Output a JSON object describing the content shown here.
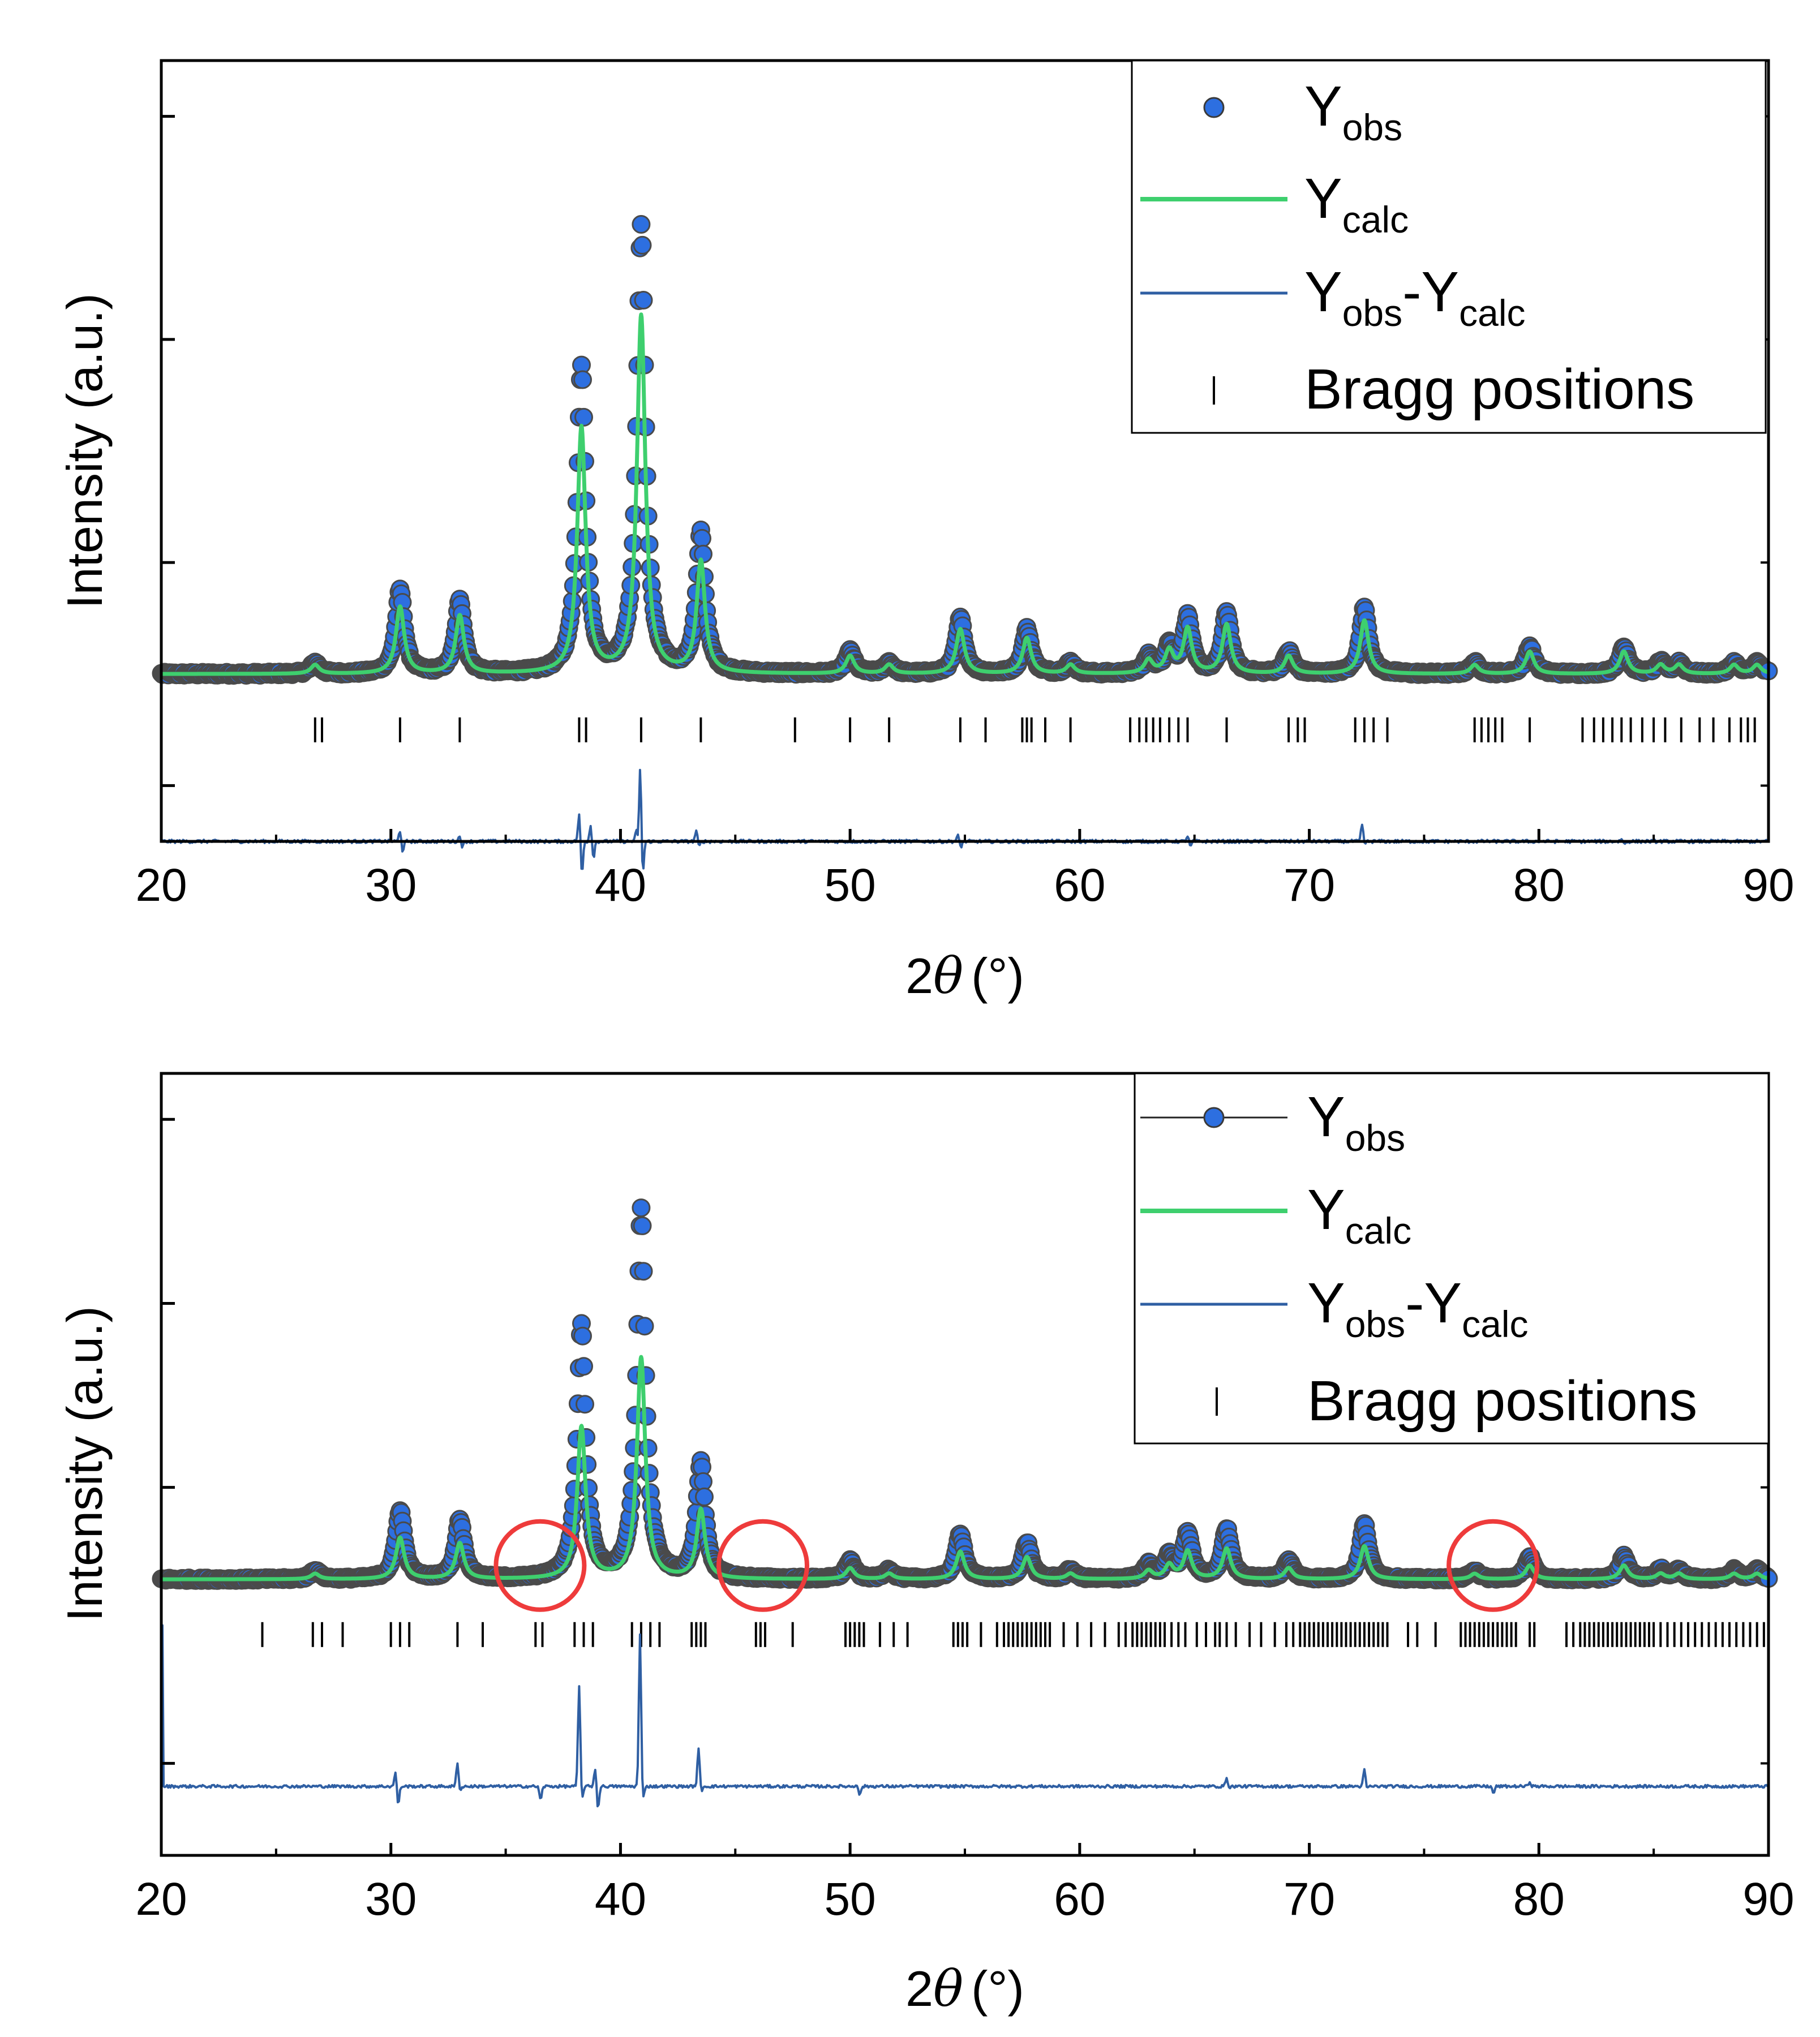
{
  "chart_data": [
    {
      "type": "line",
      "id": "top",
      "xlabel": "2θ (°)",
      "xlabel_prefix": "2",
      "xlabel_theta": "θ",
      "xlabel_unit": "(°)",
      "ylabel": "Intensity (a.u.)",
      "xlim": [
        20,
        90
      ],
      "ylim": [
        -0.3,
        1.1
      ],
      "x_ticks": [
        20,
        30,
        40,
        50,
        60,
        70,
        80,
        90
      ],
      "x_tick_labels": [
        "20",
        "30",
        "40",
        "50",
        "60",
        "70",
        "80",
        "90"
      ],
      "y_ticks": [
        -0.2,
        0.2,
        0.6,
        1.0
      ],
      "legend": {
        "position": "top-right",
        "entries": [
          {
            "series": "obs",
            "main": "Y",
            "sub": "obs"
          },
          {
            "series": "calc",
            "main": "Y",
            "sub": "calc"
          },
          {
            "series": "diff",
            "main": "Y",
            "sub": "obs",
            "main2": "-Y",
            "sub2": "calc"
          },
          {
            "series": "bragg",
            "text": "Bragg positions"
          }
        ]
      },
      "baseline": 0.0,
      "peaks": [
        {
          "x": 26.7,
          "h": 0.02
        },
        {
          "x": 30.4,
          "h": 0.15
        },
        {
          "x": 33.0,
          "h": 0.13
        },
        {
          "x": 38.3,
          "h": 0.55
        },
        {
          "x": 40.9,
          "h": 0.8
        },
        {
          "x": 43.5,
          "h": 0.25
        },
        {
          "x": 50.0,
          "h": 0.04
        },
        {
          "x": 51.7,
          "h": 0.02
        },
        {
          "x": 54.8,
          "h": 0.1
        },
        {
          "x": 57.7,
          "h": 0.08
        },
        {
          "x": 59.6,
          "h": 0.02
        },
        {
          "x": 63.0,
          "h": 0.03
        },
        {
          "x": 63.9,
          "h": 0.05
        },
        {
          "x": 64.7,
          "h": 0.1
        },
        {
          "x": 66.4,
          "h": 0.11
        },
        {
          "x": 69.1,
          "h": 0.04
        },
        {
          "x": 72.4,
          "h": 0.12
        },
        {
          "x": 77.2,
          "h": 0.02
        },
        {
          "x": 79.6,
          "h": 0.05
        },
        {
          "x": 83.7,
          "h": 0.05
        },
        {
          "x": 85.3,
          "h": 0.02
        },
        {
          "x": 86.1,
          "h": 0.02
        },
        {
          "x": 88.5,
          "h": 0.02
        },
        {
          "x": 89.5,
          "h": 0.02
        }
      ],
      "calc_scale": 0.8,
      "bragg_y": -0.1,
      "bragg_positions": [
        26.7,
        27.0,
        30.4,
        33.0,
        38.2,
        38.5,
        40.9,
        43.5,
        47.6,
        50.0,
        51.7,
        54.8,
        55.9,
        57.5,
        57.7,
        57.9,
        58.5,
        59.6,
        62.2,
        62.6,
        62.9,
        63.2,
        63.5,
        63.9,
        64.3,
        64.7,
        66.4,
        69.1,
        69.5,
        69.8,
        72.0,
        72.4,
        72.8,
        73.4,
        77.2,
        77.5,
        77.8,
        78.1,
        78.4,
        79.6,
        81.9,
        82.4,
        82.8,
        83.2,
        83.6,
        84.0,
        84.5,
        85.0,
        85.5,
        86.2,
        87.0,
        87.6,
        88.3,
        88.8,
        89.1,
        89.4
      ],
      "diff_offset": -0.3,
      "diff_spikes": [
        {
          "x": 30.4,
          "up": 0.02,
          "down": -0.02
        },
        {
          "x": 33.0,
          "up": 0.01,
          "down": -0.01
        },
        {
          "x": 38.2,
          "up": 0.05,
          "down": -0.06
        },
        {
          "x": 38.7,
          "up": 0.03,
          "down": -0.03
        },
        {
          "x": 40.7,
          "up": 0.02,
          "down": -0.06
        },
        {
          "x": 40.85,
          "up": 0.18,
          "down": -0.06
        },
        {
          "x": 43.3,
          "up": 0.02,
          "down": -0.01
        },
        {
          "x": 54.7,
          "up": 0.01,
          "down": -0.01
        },
        {
          "x": 64.7,
          "up": 0.01,
          "down": -0.01
        },
        {
          "x": 72.3,
          "up": 0.03,
          "down": -0.005
        },
        {
          "x": 83.6,
          "up": 0.005,
          "down": -0.005
        }
      ]
    },
    {
      "type": "line",
      "id": "bottom",
      "xlabel": "2θ (°)",
      "xlabel_prefix": "2",
      "xlabel_theta": "θ",
      "xlabel_unit": "(°)",
      "ylabel": "Intensity (a.u.)",
      "xlim": [
        20,
        90
      ],
      "ylim": [
        -0.6,
        1.1
      ],
      "x_ticks": [
        20,
        30,
        40,
        50,
        60,
        70,
        80,
        90
      ],
      "x_tick_labels": [
        "20",
        "30",
        "40",
        "50",
        "60",
        "70",
        "80",
        "90"
      ],
      "y_ticks": [
        -0.4,
        0.2,
        0.6,
        1.0
      ],
      "legend": {
        "position": "top-right",
        "entries": [
          {
            "series": "obs",
            "main": "Y",
            "sub": "obs"
          },
          {
            "series": "calc",
            "main": "Y",
            "sub": "calc"
          },
          {
            "series": "diff",
            "main": "Y",
            "sub": "obs",
            "main2": "-Y",
            "sub2": "calc"
          },
          {
            "series": "bragg",
            "text": "Bragg positions"
          }
        ]
      },
      "baseline": 0.0,
      "peaks": [
        {
          "x": 26.7,
          "h": 0.02
        },
        {
          "x": 30.4,
          "h": 0.15
        },
        {
          "x": 33.0,
          "h": 0.13
        },
        {
          "x": 38.3,
          "h": 0.55
        },
        {
          "x": 40.9,
          "h": 0.8
        },
        {
          "x": 43.5,
          "h": 0.25
        },
        {
          "x": 50.0,
          "h": 0.04
        },
        {
          "x": 51.7,
          "h": 0.02
        },
        {
          "x": 54.8,
          "h": 0.1
        },
        {
          "x": 57.7,
          "h": 0.08
        },
        {
          "x": 59.6,
          "h": 0.02
        },
        {
          "x": 63.0,
          "h": 0.03
        },
        {
          "x": 63.9,
          "h": 0.05
        },
        {
          "x": 64.7,
          "h": 0.1
        },
        {
          "x": 66.4,
          "h": 0.11
        },
        {
          "x": 69.1,
          "h": 0.04
        },
        {
          "x": 72.4,
          "h": 0.12
        },
        {
          "x": 77.2,
          "h": 0.02
        },
        {
          "x": 79.6,
          "h": 0.05
        },
        {
          "x": 83.7,
          "h": 0.05
        },
        {
          "x": 85.3,
          "h": 0.02
        },
        {
          "x": 86.1,
          "h": 0.02
        },
        {
          "x": 88.5,
          "h": 0.02
        },
        {
          "x": 89.5,
          "h": 0.02
        }
      ],
      "calc_scale": 0.6,
      "bragg_y": -0.12,
      "bragg_positions": [
        24.4,
        26.6,
        27.0,
        27.9,
        30.0,
        30.4,
        30.8,
        32.9,
        34.0,
        36.3,
        36.6,
        38.0,
        38.4,
        38.8,
        40.5,
        40.9,
        41.3,
        41.7,
        43.1,
        43.3,
        43.5,
        43.7,
        45.9,
        46.1,
        46.3,
        47.5,
        49.8,
        50.0,
        50.2,
        50.4,
        50.6,
        51.3,
        51.9,
        52.5,
        54.5,
        54.7,
        54.9,
        55.1,
        55.7,
        56.4,
        56.7,
        56.9,
        57.1,
        57.3,
        57.5,
        57.7,
        57.9,
        58.1,
        58.3,
        58.5,
        58.7,
        59.3,
        59.9,
        60.5,
        61.1,
        61.7,
        62.0,
        62.3,
        62.5,
        62.7,
        62.9,
        63.1,
        63.3,
        63.5,
        63.7,
        64.0,
        64.3,
        64.6,
        65.1,
        65.5,
        65.9,
        66.1,
        66.4,
        66.8,
        67.4,
        67.9,
        68.5,
        69.0,
        69.3,
        69.6,
        69.8,
        70.0,
        70.2,
        70.4,
        70.6,
        70.8,
        71.0,
        71.2,
        71.4,
        71.6,
        71.8,
        72.0,
        72.2,
        72.4,
        72.6,
        72.8,
        73.0,
        73.2,
        73.4,
        74.3,
        74.7,
        75.5,
        76.6,
        76.8,
        77.0,
        77.2,
        77.4,
        77.6,
        77.8,
        78.0,
        78.2,
        78.4,
        78.6,
        78.8,
        79.0,
        79.6,
        79.8,
        81.2,
        81.5,
        81.8,
        82.0,
        82.2,
        82.4,
        82.6,
        82.8,
        83.0,
        83.2,
        83.4,
        83.6,
        83.8,
        84.0,
        84.2,
        84.4,
        84.6,
        84.8,
        85.0,
        85.3,
        85.6,
        85.9,
        86.2,
        86.5,
        86.8,
        87.1,
        87.4,
        87.7,
        88.0,
        88.3,
        88.6,
        88.9,
        89.2,
        89.5,
        89.8
      ],
      "diff_offset": -0.45,
      "diff_spikes": [
        {
          "x": 30.2,
          "up": 0.03,
          "down": -0.04
        },
        {
          "x": 32.9,
          "up": 0.05,
          "down": -0.01
        },
        {
          "x": 36.4,
          "up": 0.0,
          "down": -0.03
        },
        {
          "x": 38.2,
          "up": 0.22,
          "down": -0.03
        },
        {
          "x": 38.9,
          "up": 0.04,
          "down": -0.05
        },
        {
          "x": 40.85,
          "up": 0.33,
          "down": -0.03
        },
        {
          "x": 43.4,
          "up": 0.08,
          "down": -0.01
        },
        {
          "x": 50.3,
          "up": 0.005,
          "down": -0.02
        },
        {
          "x": 66.4,
          "up": 0.02,
          "down": -0.005
        },
        {
          "x": 72.4,
          "up": 0.035,
          "down": -0.005
        },
        {
          "x": 77.9,
          "up": 0.0,
          "down": -0.015
        },
        {
          "x": 79.6,
          "up": 0.01,
          "down": 0.0
        }
      ],
      "diff_start_spike": {
        "x": 20.0,
        "y": -0.1
      },
      "highlight_circles": [
        {
          "x": 36.5,
          "y": 0.03
        },
        {
          "x": 46.2,
          "y": 0.03
        },
        {
          "x": 78.0,
          "y": 0.03
        }
      ]
    }
  ],
  "colors": {
    "obs_fill": "#2d6fe0",
    "obs_edge": "#4a4a4a",
    "calc": "#3ecf6e",
    "diff": "#2f5fa3",
    "bragg": "#000000",
    "circle": "#ee3b3b",
    "frame": "#000000"
  }
}
